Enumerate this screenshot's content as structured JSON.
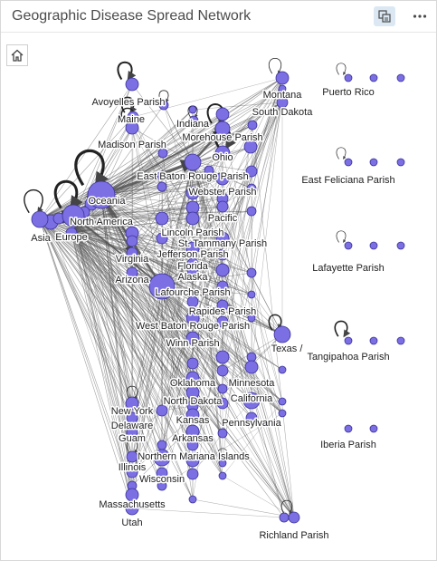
{
  "title": "Geographic Disease Spread Network",
  "toolbar": {
    "toggle_icon": "view-toggle-icon",
    "more_icon": "more-options-icon",
    "home_icon": "home-icon"
  },
  "colors": {
    "node_fill": "#7b6fe3",
    "node_stroke": "#3a3399",
    "edge": "#555555",
    "accent": "#dbe8f3"
  },
  "node_labels": {
    "avoyelles": "Avoyelles Parish",
    "maine": "Maine",
    "madison": "Madison Parish",
    "indiana": "Indiana",
    "morehouse": "Morehouse Parish",
    "ohio": "Ohio",
    "montana": "Montana",
    "south_dakota": "South Dakota",
    "puerto_rico": "Puerto Rico",
    "east_baton_rouge": "East Baton Rouge Parish",
    "webster": "Webster Parish",
    "east_feliciana": "East Feliciana Parish",
    "oceania": "Oceania",
    "north_america": "North America",
    "asia": "Asia",
    "europe": "Europe",
    "pacific": "Pacific",
    "lincoln": "Lincoln Parish",
    "st_tammany": "St. Tammany Parish",
    "jefferson": "Jefferson Parish",
    "florida": "Florida",
    "virginia": "Virginia",
    "alaska": "Alaska",
    "arizona": "Arizona",
    "lafourche": "Lafourche Parish",
    "lafayette": "Lafayette Parish",
    "rapides": "Rapides Parish",
    "west_baton_rouge": "West Baton Rouge Parish",
    "winn": "Winn Parish",
    "texas": "Texas /",
    "tangipahoa": "Tangipahoa Parish",
    "oklahoma": "Oklahoma",
    "minnesota": "Minnesota",
    "california": "California",
    "north_dakota": "North Dakota",
    "new_york": "New York",
    "delaware": "Delaware",
    "kansas": "Kansas",
    "pennsylvania": "Pennsylvania",
    "guam": "Guam",
    "arkansas": "Arkansas",
    "iberia": "Iberia Parish",
    "illinois": "Illinois",
    "northern_mariana": "Northern Mariana Islands",
    "wisconsin": "Wisconsin",
    "massachusetts": "Massachusetts",
    "utah": "Utah",
    "richland": "Richland Parish"
  }
}
